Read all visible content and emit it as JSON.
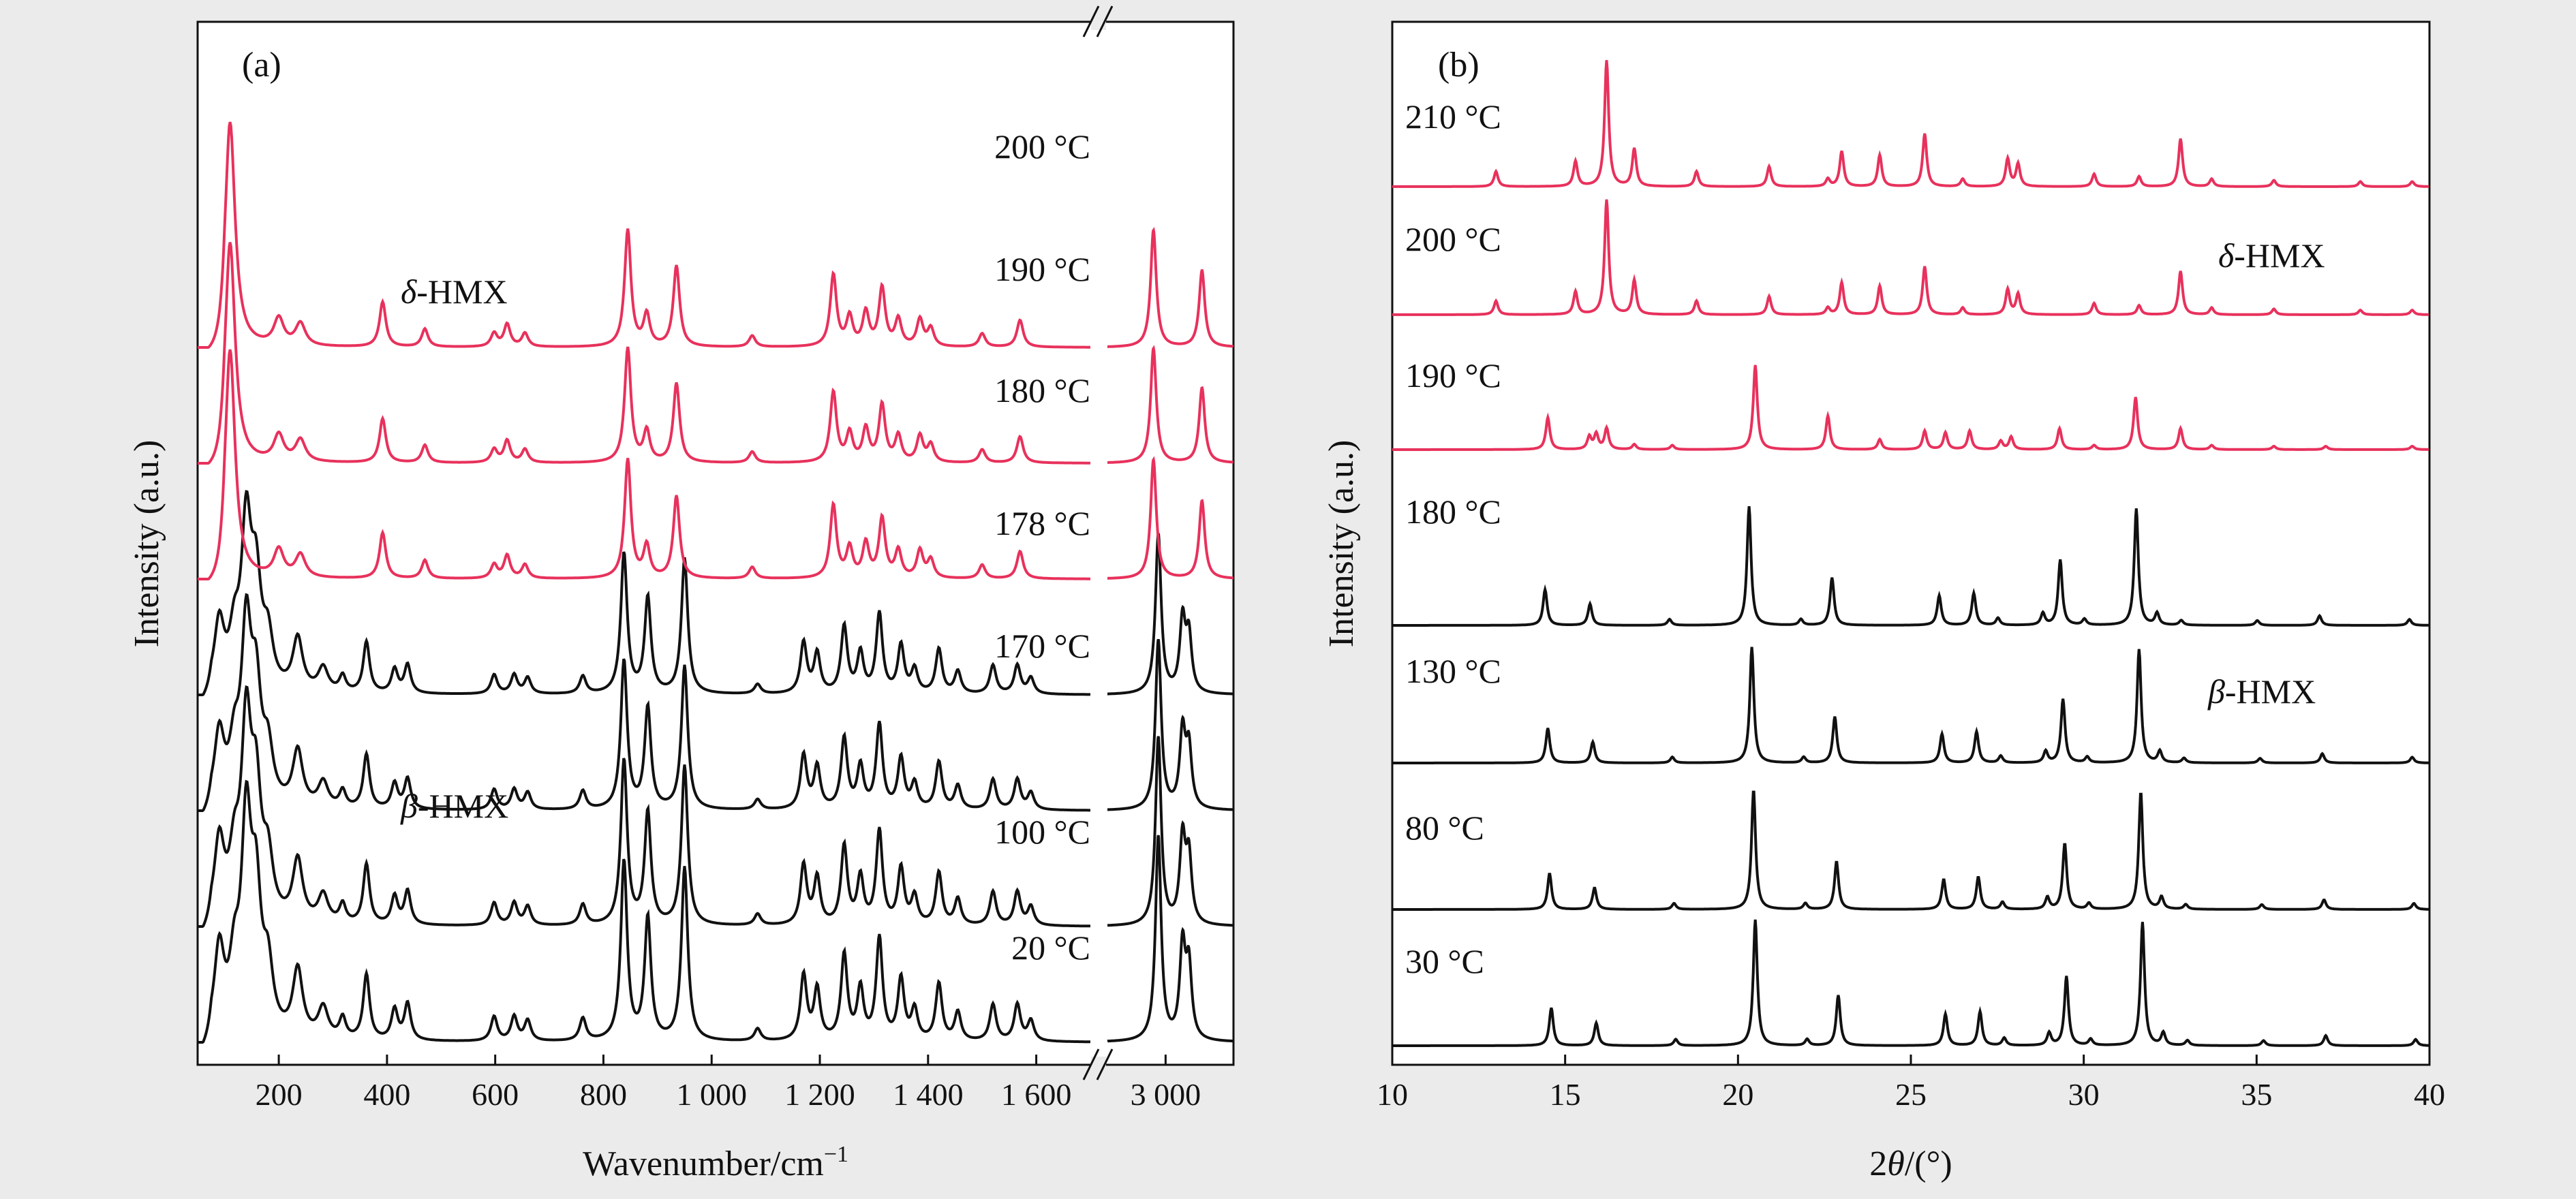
{
  "chart_data": [
    {
      "type": "line",
      "panel_label": "(a)",
      "xlabel": "Wavenumber/cm",
      "xlabel_sup": "−1",
      "ylabel": "Intensity (a.u.)",
      "x_axis_broken": true,
      "break_mark": "//",
      "xlim_left": [
        50,
        1700
      ],
      "xlim_right": [
        2880,
        3140
      ],
      "xticks_left": [
        {
          "v": 200,
          "label": "200"
        },
        {
          "v": 400,
          "label": "400"
        },
        {
          "v": 600,
          "label": "600"
        },
        {
          "v": 800,
          "label": "800"
        },
        {
          "v": 1000,
          "label": "1 000"
        },
        {
          "v": 1200,
          "label": "1 200"
        },
        {
          "v": 1400,
          "label": "1 400"
        },
        {
          "v": 1600,
          "label": "1 600"
        }
      ],
      "xticks_right": [
        {
          "v": 3000,
          "label": "3 000"
        }
      ],
      "phase_labels": [
        {
          "name": "δ",
          "suffix": "-HMX"
        },
        {
          "name": "β",
          "suffix": "-HMX"
        }
      ],
      "peaks_beta": [
        {
          "x": 90,
          "h": 0.42
        },
        {
          "x": 118,
          "h": 0.3
        },
        {
          "x": 140,
          "h": 1.0
        },
        {
          "x": 158,
          "h": 0.62
        },
        {
          "x": 180,
          "h": 0.3
        },
        {
          "x": 235,
          "h": 0.33
        },
        {
          "x": 282,
          "h": 0.15
        },
        {
          "x": 318,
          "h": 0.1
        },
        {
          "x": 362,
          "h": 0.32
        },
        {
          "x": 414,
          "h": 0.15
        },
        {
          "x": 438,
          "h": 0.18
        },
        {
          "x": 598,
          "h": 0.12
        },
        {
          "x": 635,
          "h": 0.12
        },
        {
          "x": 660,
          "h": 0.1
        },
        {
          "x": 762,
          "h": 0.11
        },
        {
          "x": 838,
          "h": 0.88
        },
        {
          "x": 882,
          "h": 0.6
        },
        {
          "x": 950,
          "h": 0.85
        },
        {
          "x": 1085,
          "h": 0.06
        },
        {
          "x": 1170,
          "h": 0.32
        },
        {
          "x": 1195,
          "h": 0.25
        },
        {
          "x": 1245,
          "h": 0.42
        },
        {
          "x": 1275,
          "h": 0.25
        },
        {
          "x": 1310,
          "h": 0.5
        },
        {
          "x": 1350,
          "h": 0.3
        },
        {
          "x": 1375,
          "h": 0.15
        },
        {
          "x": 1420,
          "h": 0.28
        },
        {
          "x": 1455,
          "h": 0.14
        },
        {
          "x": 1520,
          "h": 0.18
        },
        {
          "x": 1565,
          "h": 0.18
        },
        {
          "x": 1590,
          "h": 0.1
        },
        {
          "x": 2985,
          "h": 1.0
        },
        {
          "x": 3035,
          "h": 0.45
        },
        {
          "x": 3048,
          "h": 0.35
        }
      ],
      "peaks_delta": [
        {
          "x": 110,
          "h": 1.0
        },
        {
          "x": 200,
          "h": 0.12
        },
        {
          "x": 240,
          "h": 0.1
        },
        {
          "x": 392,
          "h": 0.2
        },
        {
          "x": 470,
          "h": 0.08
        },
        {
          "x": 598,
          "h": 0.06
        },
        {
          "x": 622,
          "h": 0.1
        },
        {
          "x": 655,
          "h": 0.06
        },
        {
          "x": 845,
          "h": 0.52
        },
        {
          "x": 880,
          "h": 0.14
        },
        {
          "x": 935,
          "h": 0.36
        },
        {
          "x": 1075,
          "h": 0.05
        },
        {
          "x": 1225,
          "h": 0.32
        },
        {
          "x": 1255,
          "h": 0.13
        },
        {
          "x": 1285,
          "h": 0.15
        },
        {
          "x": 1315,
          "h": 0.26
        },
        {
          "x": 1345,
          "h": 0.12
        },
        {
          "x": 1385,
          "h": 0.12
        },
        {
          "x": 1405,
          "h": 0.08
        },
        {
          "x": 1500,
          "h": 0.06
        },
        {
          "x": 1570,
          "h": 0.12
        },
        {
          "x": 2975,
          "h": 0.52
        },
        {
          "x": 3075,
          "h": 0.34
        }
      ],
      "series": [
        {
          "name": "20 °C",
          "label": "20 °C",
          "phase": "beta",
          "color": "#111111",
          "scale": 1.0
        },
        {
          "name": "100 °C",
          "label": "100 °C",
          "phase": "beta",
          "color": "#111111",
          "scale": 0.95
        },
        {
          "name": "170 °C",
          "label": "170 °C",
          "phase": "beta",
          "color": "#111111",
          "scale": 0.92
        },
        {
          "name": "178 °C",
          "label": "178 °C",
          "phase": "beta",
          "color": "#111111",
          "scale": 0.9
        },
        {
          "name": "180 °C",
          "label": "180 °C",
          "phase": "delta",
          "color": "#e8315c",
          "scale": 0.96
        },
        {
          "name": "190 °C",
          "label": "190 °C",
          "phase": "delta",
          "color": "#e8315c",
          "scale": 0.98
        },
        {
          "name": "200 °C",
          "label": "200 °C",
          "phase": "delta",
          "color": "#e8315c",
          "scale": 1.0
        }
      ]
    },
    {
      "type": "line",
      "panel_label": "(b)",
      "xlabel_pre": "2",
      "xlabel_theta": "θ",
      "xlabel_post": "/(°)",
      "ylabel": "Intensity (a.u.)",
      "xlim": [
        10,
        40
      ],
      "xticks": [
        10,
        15,
        20,
        25,
        30,
        35,
        40
      ],
      "phase_labels": [
        {
          "name": "δ",
          "suffix": "-HMX"
        },
        {
          "name": "β",
          "suffix": "-HMX"
        }
      ],
      "peaks_beta": [
        {
          "x": 14.6,
          "h": 0.3
        },
        {
          "x": 15.9,
          "h": 0.18
        },
        {
          "x": 18.2,
          "h": 0.05
        },
        {
          "x": 20.5,
          "h": 1.0
        },
        {
          "x": 22.0,
          "h": 0.05
        },
        {
          "x": 22.9,
          "h": 0.4
        },
        {
          "x": 26.0,
          "h": 0.25
        },
        {
          "x": 27.0,
          "h": 0.27
        },
        {
          "x": 27.7,
          "h": 0.06
        },
        {
          "x": 29.0,
          "h": 0.1
        },
        {
          "x": 29.5,
          "h": 0.55
        },
        {
          "x": 30.2,
          "h": 0.05
        },
        {
          "x": 31.7,
          "h": 0.98
        },
        {
          "x": 32.3,
          "h": 0.1
        },
        {
          "x": 33.0,
          "h": 0.04
        },
        {
          "x": 35.2,
          "h": 0.04
        },
        {
          "x": 37.0,
          "h": 0.08
        },
        {
          "x": 39.6,
          "h": 0.05
        }
      ],
      "peaks_delta": [
        {
          "x": 13.0,
          "h": 0.12
        },
        {
          "x": 15.3,
          "h": 0.2
        },
        {
          "x": 16.2,
          "h": 1.0
        },
        {
          "x": 17.0,
          "h": 0.3
        },
        {
          "x": 18.8,
          "h": 0.12
        },
        {
          "x": 20.9,
          "h": 0.16
        },
        {
          "x": 22.6,
          "h": 0.06
        },
        {
          "x": 23.0,
          "h": 0.28
        },
        {
          "x": 24.1,
          "h": 0.25
        },
        {
          "x": 25.4,
          "h": 0.42
        },
        {
          "x": 26.5,
          "h": 0.06
        },
        {
          "x": 27.8,
          "h": 0.22
        },
        {
          "x": 28.1,
          "h": 0.18
        },
        {
          "x": 30.3,
          "h": 0.1
        },
        {
          "x": 31.6,
          "h": 0.08
        },
        {
          "x": 32.8,
          "h": 0.38
        },
        {
          "x": 33.7,
          "h": 0.06
        },
        {
          "x": 35.5,
          "h": 0.05
        },
        {
          "x": 38.0,
          "h": 0.04
        },
        {
          "x": 39.5,
          "h": 0.04
        }
      ],
      "peaks_mixed": [
        {
          "x": 14.5,
          "h": 0.38
        },
        {
          "x": 15.7,
          "h": 0.15
        },
        {
          "x": 15.9,
          "h": 0.18
        },
        {
          "x": 16.2,
          "h": 0.25
        },
        {
          "x": 17.0,
          "h": 0.06
        },
        {
          "x": 18.1,
          "h": 0.05
        },
        {
          "x": 20.5,
          "h": 1.0
        },
        {
          "x": 22.6,
          "h": 0.4
        },
        {
          "x": 24.1,
          "h": 0.12
        },
        {
          "x": 25.4,
          "h": 0.22
        },
        {
          "x": 26.0,
          "h": 0.2
        },
        {
          "x": 26.7,
          "h": 0.22
        },
        {
          "x": 27.6,
          "h": 0.1
        },
        {
          "x": 27.9,
          "h": 0.15
        },
        {
          "x": 29.3,
          "h": 0.25
        },
        {
          "x": 30.3,
          "h": 0.05
        },
        {
          "x": 31.5,
          "h": 0.62
        },
        {
          "x": 32.8,
          "h": 0.25
        },
        {
          "x": 33.7,
          "h": 0.05
        },
        {
          "x": 35.5,
          "h": 0.04
        },
        {
          "x": 37.0,
          "h": 0.04
        },
        {
          "x": 39.5,
          "h": 0.04
        }
      ],
      "series": [
        {
          "name": "30 °C",
          "label": "30 °C",
          "pattern": "beta",
          "color": "#111111",
          "shift": 0.0,
          "scale": 1.0
        },
        {
          "name": "80 °C",
          "label": "80 °C",
          "pattern": "beta",
          "color": "#111111",
          "shift": -0.05,
          "scale": 0.95
        },
        {
          "name": "130 °C",
          "label": "130 °C",
          "pattern": "beta",
          "color": "#111111",
          "shift": -0.1,
          "scale": 0.92
        },
        {
          "name": "180 °C",
          "label": "180 °C",
          "pattern": "beta",
          "color": "#111111",
          "shift": -0.18,
          "scale": 0.92
        },
        {
          "name": "190 °C",
          "label": "190 °C",
          "pattern": "mixed",
          "color": "#e8315c",
          "shift": 0.0,
          "scale": 0.8
        },
        {
          "name": "200 °C",
          "label": "200 °C",
          "pattern": "delta",
          "color": "#e8315c",
          "shift": 0.0,
          "scale": 0.98
        },
        {
          "name": "210 °C",
          "label": "210 °C",
          "pattern": "delta",
          "color": "#e8315c",
          "shift": 0.0,
          "scale": 1.0
        }
      ]
    }
  ]
}
